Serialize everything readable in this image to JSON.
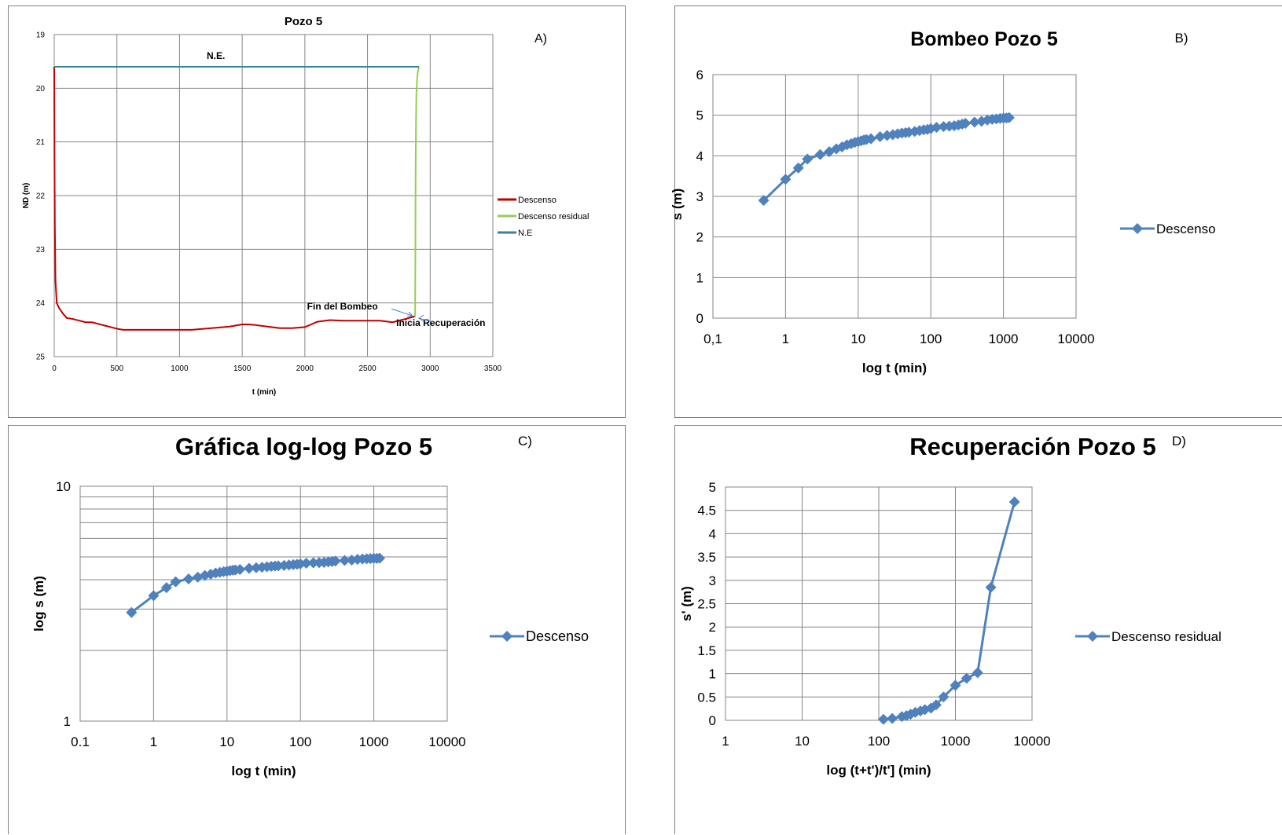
{
  "chart_data": [
    {
      "id": "A",
      "type": "line",
      "panel_label": "A)",
      "title": "Pozo 5",
      "xlabel": "t (min)",
      "ylabel": "ND (m)",
      "xlim": [
        0,
        3500
      ],
      "ylim": [
        19,
        25
      ],
      "y_reversed": true,
      "xticks": [
        0,
        500,
        1000,
        1500,
        2000,
        2500,
        3000,
        3500
      ],
      "yticks": [
        19,
        20,
        21,
        22,
        23,
        24,
        25
      ],
      "grid": true,
      "legend_position": "right",
      "series": [
        {
          "name": "Descenso",
          "color": "#c00000",
          "x": [
            0,
            2,
            5,
            10,
            20,
            40,
            70,
            100,
            150,
            200,
            250,
            300,
            400,
            500,
            550,
            600,
            800,
            1000,
            1100,
            1200,
            1300,
            1400,
            1500,
            1550,
            1600,
            1700,
            1800,
            1900,
            2000,
            2050,
            2100,
            2200,
            2300,
            2400,
            2500,
            2600,
            2700,
            2800,
            2880
          ],
          "y": [
            19.6,
            21.2,
            22.6,
            23.6,
            24.0,
            24.1,
            24.2,
            24.28,
            24.3,
            24.33,
            24.36,
            24.36,
            24.42,
            24.48,
            24.5,
            24.5,
            24.5,
            24.5,
            24.5,
            24.48,
            24.46,
            24.44,
            24.4,
            24.4,
            24.41,
            24.44,
            24.47,
            24.47,
            24.45,
            24.4,
            24.35,
            24.32,
            24.33,
            24.33,
            24.33,
            24.33,
            24.36,
            24.3,
            24.25
          ]
        },
        {
          "name": "Descenso residual",
          "color": "#92d050",
          "x": [
            2880,
            2882,
            2884,
            2887,
            2890,
            2895,
            2900,
            2905,
            2910
          ],
          "y": [
            24.25,
            23.0,
            21.5,
            20.6,
            20.1,
            19.85,
            19.72,
            19.66,
            19.6
          ]
        },
        {
          "name": "N.E",
          "color": "#31859c",
          "x": [
            0,
            2910
          ],
          "y": [
            19.6,
            19.6
          ]
        }
      ],
      "annotations": [
        {
          "text": "N.E.",
          "x": 1290,
          "y": 19.45
        },
        {
          "text": "Fin del Bombeo",
          "x": 2300,
          "y": 24.12
        },
        {
          "text": "Inicia Recuperación",
          "x": 3085,
          "y": 24.43
        }
      ]
    },
    {
      "id": "B",
      "type": "line",
      "panel_label": "B)",
      "title": "Bombeo Pozo 5",
      "xlabel": "log  t  (min)",
      "ylabel": "s  (m)",
      "xscale": "log",
      "xlim": [
        0.1,
        10000
      ],
      "ylim": [
        0,
        6
      ],
      "xtick_labels": [
        "0,1",
        "1",
        "10",
        "100",
        "1000",
        "10000"
      ],
      "yticks": [
        0,
        1,
        2,
        3,
        4,
        5,
        6
      ],
      "grid": true,
      "legend_position": "right",
      "series": [
        {
          "name": "Descenso",
          "color": "#4f81bd",
          "x": [
            0.5,
            1,
            1.5,
            2,
            3,
            4,
            5,
            6,
            7,
            8,
            9,
            10,
            11,
            12,
            13,
            15,
            20,
            25,
            30,
            35,
            40,
            45,
            50,
            60,
            70,
            80,
            90,
            100,
            120,
            150,
            180,
            210,
            240,
            270,
            300,
            400,
            500,
            600,
            700,
            800,
            900,
            1000,
            1100,
            1200
          ],
          "y": [
            2.9,
            3.42,
            3.7,
            3.92,
            4.03,
            4.1,
            4.17,
            4.22,
            4.27,
            4.3,
            4.33,
            4.35,
            4.37,
            4.39,
            4.4,
            4.42,
            4.47,
            4.5,
            4.52,
            4.54,
            4.56,
            4.57,
            4.58,
            4.6,
            4.62,
            4.64,
            4.65,
            4.67,
            4.7,
            4.72,
            4.73,
            4.74,
            4.76,
            4.78,
            4.8,
            4.83,
            4.85,
            4.88,
            4.9,
            4.91,
            4.92,
            4.93,
            4.93,
            4.94
          ]
        }
      ]
    },
    {
      "id": "C",
      "type": "line",
      "panel_label": "C)",
      "title": "Gráfica log-log Pozo 5",
      "xlabel": "log t (min)",
      "ylabel": "log s  (m)",
      "xscale": "log",
      "yscale": "log",
      "xlim": [
        0.1,
        10000
      ],
      "ylim": [
        1,
        10
      ],
      "xtick_labels": [
        "0.1",
        "1",
        "10",
        "100",
        "1000",
        "10000"
      ],
      "ytick_labels": [
        "1",
        "10"
      ],
      "grid": true,
      "legend_position": "right",
      "series": [
        {
          "name": "Descenso",
          "color": "#4f81bd",
          "x": [
            0.5,
            1,
            1.5,
            2,
            3,
            4,
            5,
            6,
            7,
            8,
            9,
            10,
            11,
            12,
            13,
            15,
            20,
            25,
            30,
            35,
            40,
            45,
            50,
            60,
            70,
            80,
            90,
            100,
            120,
            150,
            180,
            210,
            240,
            270,
            300,
            400,
            500,
            600,
            700,
            800,
            900,
            1000,
            1100,
            1200
          ],
          "y": [
            2.9,
            3.42,
            3.7,
            3.92,
            4.03,
            4.1,
            4.17,
            4.22,
            4.27,
            4.3,
            4.33,
            4.35,
            4.37,
            4.39,
            4.4,
            4.42,
            4.47,
            4.5,
            4.52,
            4.54,
            4.56,
            4.57,
            4.58,
            4.6,
            4.62,
            4.64,
            4.65,
            4.67,
            4.7,
            4.72,
            4.73,
            4.74,
            4.76,
            4.78,
            4.8,
            4.83,
            4.85,
            4.88,
            4.9,
            4.91,
            4.92,
            4.93,
            4.93,
            4.94
          ]
        }
      ]
    },
    {
      "id": "D",
      "type": "line",
      "panel_label": "D)",
      "title": "Recuperación Pozo 5",
      "xlabel": "log  (t+t')/t']  (min)",
      "ylabel": "s' (m)",
      "xscale": "log",
      "xlim": [
        1,
        10000
      ],
      "ylim": [
        0,
        5
      ],
      "xtick_labels": [
        "1",
        "10",
        "100",
        "1000",
        "10000"
      ],
      "ytick_labels": [
        "0",
        "0.5",
        "1",
        "1.5",
        "2",
        "2.5",
        "3",
        "3.5",
        "4",
        "4.5",
        "5"
      ],
      "grid": true,
      "legend_position": "right",
      "series": [
        {
          "name": "Descenso residual",
          "color": "#4f81bd",
          "x": [
            115,
            150,
            200,
            230,
            260,
            300,
            350,
            400,
            480,
            560,
            700,
            1000,
            1400,
            1950,
            2900,
            5900
          ],
          "y": [
            0.02,
            0.04,
            0.08,
            0.1,
            0.13,
            0.17,
            0.2,
            0.23,
            0.26,
            0.33,
            0.5,
            0.75,
            0.9,
            1.02,
            2.85,
            4.68
          ]
        }
      ]
    }
  ]
}
